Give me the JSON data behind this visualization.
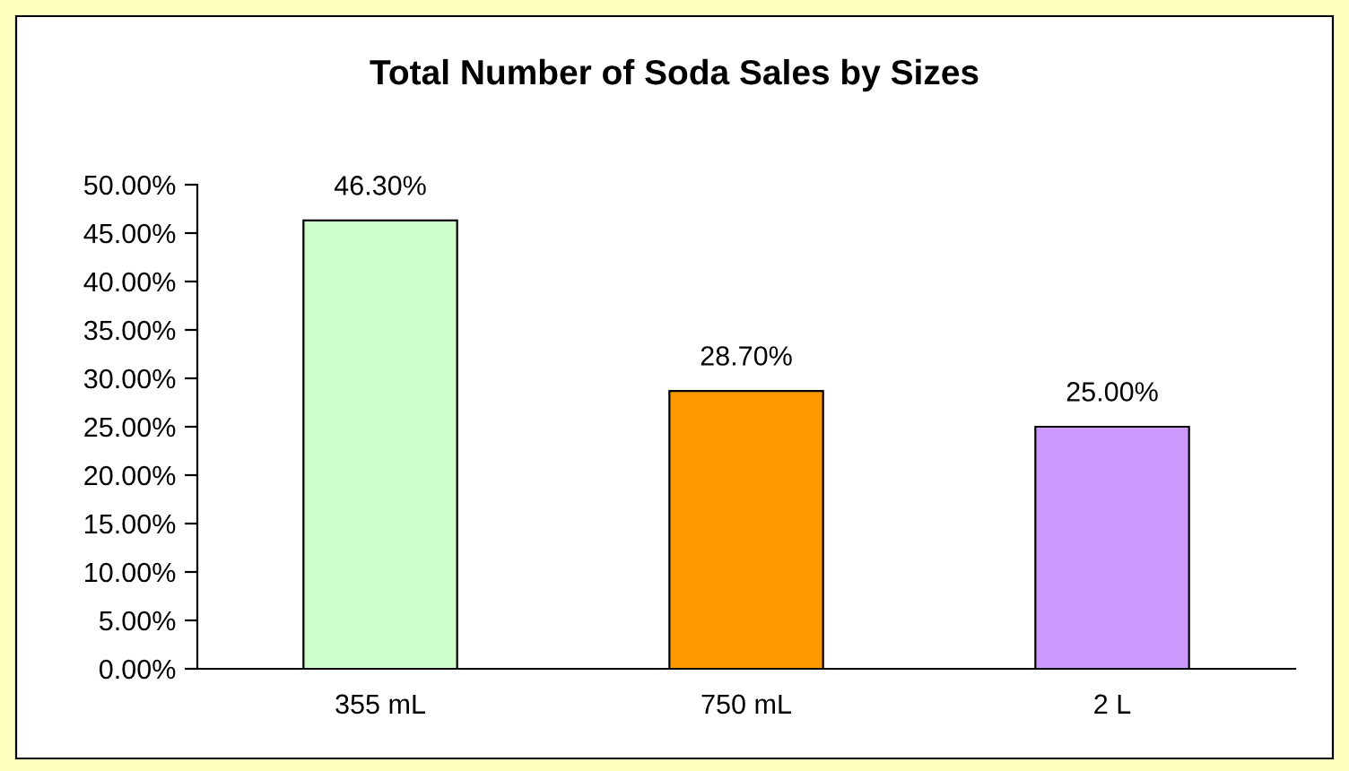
{
  "chart_data": {
    "type": "bar",
    "title": "Total Number of Soda Sales by Sizes",
    "categories": [
      "355 mL",
      "750 mL",
      "2 L"
    ],
    "values": [
      46.3,
      28.7,
      25.0
    ],
    "colors": [
      "#ccffcc",
      "#ff9900",
      "#cc99ff"
    ],
    "value_labels": [
      "46.30%",
      "28.70%",
      "25.00%"
    ],
    "ylim": [
      0,
      50
    ],
    "yticks": [
      {
        "value": 0,
        "label": "0.00%"
      },
      {
        "value": 5,
        "label": "5.00%"
      },
      {
        "value": 10,
        "label": "10.00%"
      },
      {
        "value": 15,
        "label": "15.00%"
      },
      {
        "value": 20,
        "label": "20.00%"
      },
      {
        "value": 25,
        "label": "25.00%"
      },
      {
        "value": 30,
        "label": "30.00%"
      },
      {
        "value": 35,
        "label": "35.00%"
      },
      {
        "value": 40,
        "label": "40.00%"
      },
      {
        "value": 45,
        "label": "45.00%"
      },
      {
        "value": 50,
        "label": "50.00%"
      }
    ],
    "grid": false,
    "legend": false
  }
}
